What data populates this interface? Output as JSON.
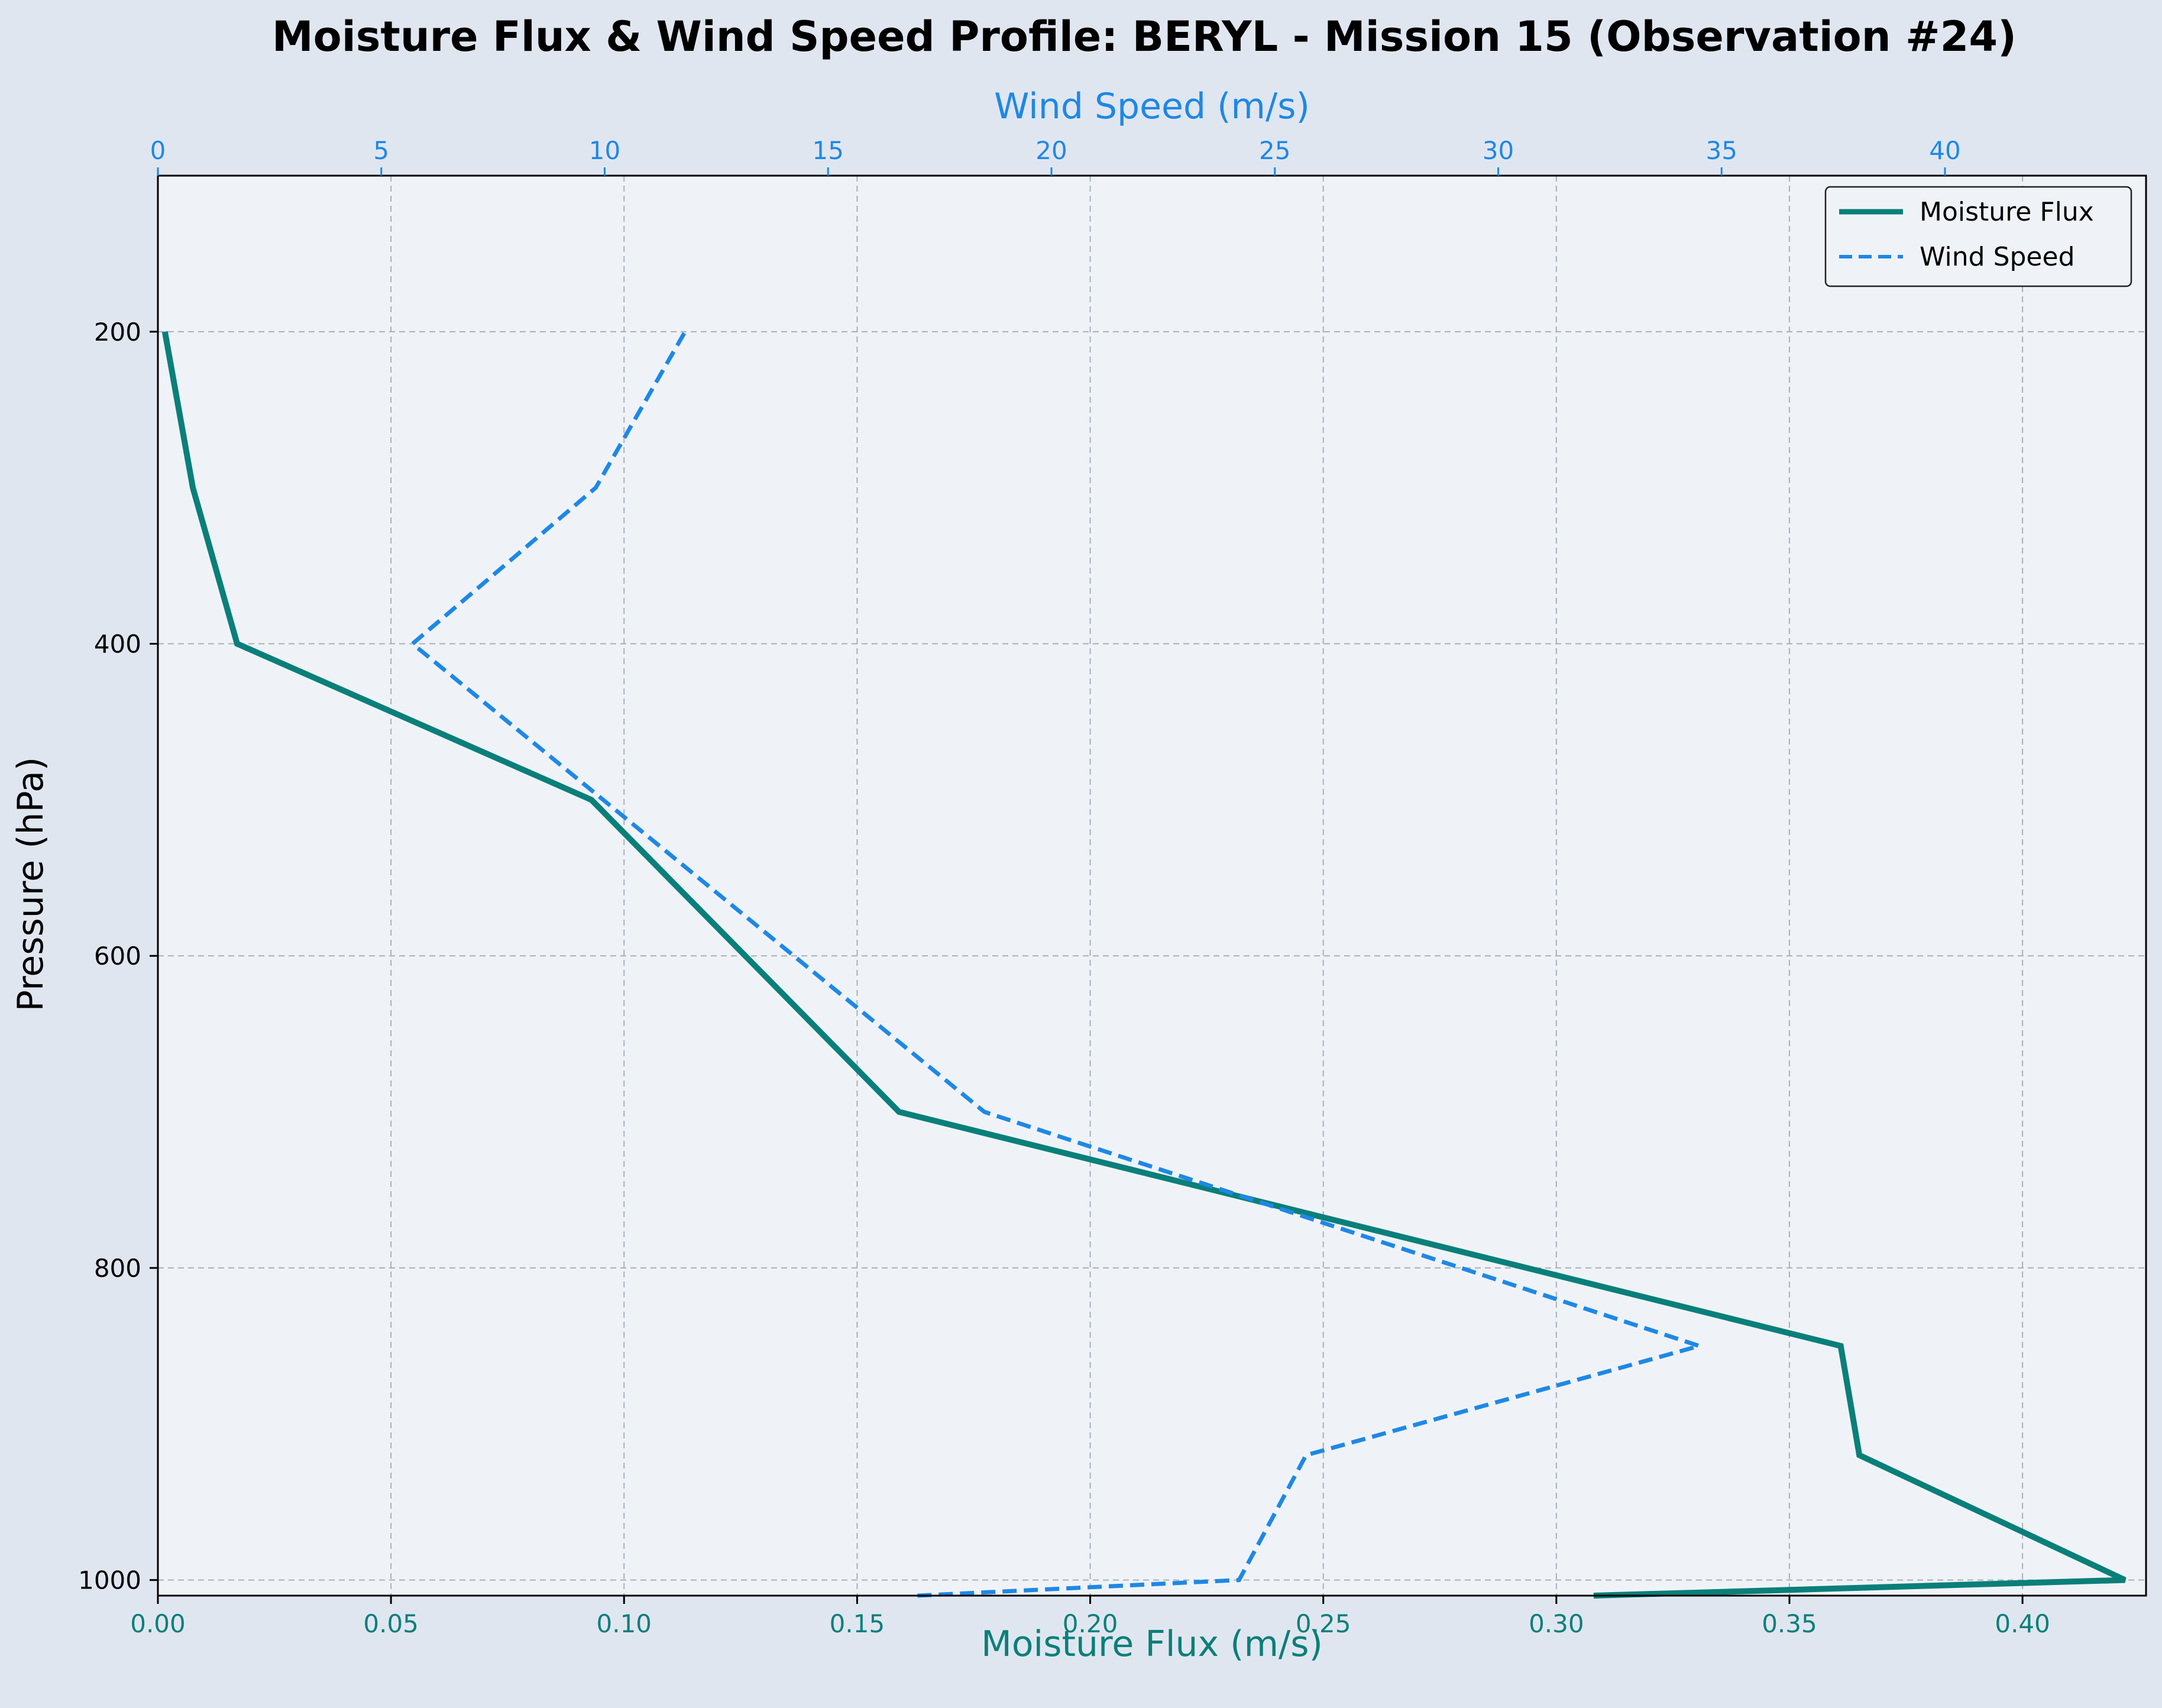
{
  "chart_data": {
    "type": "line",
    "title": "Moisture Flux & Wind Speed Profile: BERYL - Mission 15 (Observation #24)",
    "xlabel_bottom": "Moisture Flux (m/s)",
    "xlabel_top": "Wind Speed (m/s)",
    "ylabel": "Pressure (hPa)",
    "xlim_bottom": [
      0.0,
      0.4265
    ],
    "xlim_top": [
      0.0,
      44.5
    ],
    "ylim": [
      1010,
      100
    ],
    "y_inverted": true,
    "grid": true,
    "legend_position": "top-right",
    "ticks_bottom": [
      "0.00",
      "0.05",
      "0.10",
      "0.15",
      "0.20",
      "0.25",
      "0.30",
      "0.35",
      "0.40"
    ],
    "ticks_top": [
      "0",
      "5",
      "10",
      "15",
      "20",
      "25",
      "30",
      "35",
      "40"
    ],
    "ticks_left": [
      "200",
      "400",
      "600",
      "800",
      "1000"
    ],
    "series": [
      {
        "name": "Moisture Flux",
        "axis": "bottom",
        "color": "#0a7f7a",
        "style": "solid",
        "points": [
          {
            "x": 0.308,
            "y": 1010
          },
          {
            "x": 0.422,
            "y": 1000
          },
          {
            "x": 0.365,
            "y": 920
          },
          {
            "x": 0.361,
            "y": 850
          },
          {
            "x": 0.159,
            "y": 700
          },
          {
            "x": 0.093,
            "y": 500
          },
          {
            "x": 0.017,
            "y": 400
          },
          {
            "x": 0.0075,
            "y": 300
          },
          {
            "x": 0.0015,
            "y": 200
          }
        ]
      },
      {
        "name": "Wind Speed",
        "axis": "top",
        "color": "#1e88e5",
        "style": "dashed",
        "points": [
          {
            "x": 17.0,
            "y": 1010
          },
          {
            "x": 24.2,
            "y": 1000
          },
          {
            "x": 25.7,
            "y": 920
          },
          {
            "x": 34.5,
            "y": 850
          },
          {
            "x": 18.5,
            "y": 700
          },
          {
            "x": 5.7,
            "y": 400
          },
          {
            "x": 9.8,
            "y": 300
          },
          {
            "x": 11.8,
            "y": 200
          }
        ]
      }
    ]
  },
  "colors": {
    "background": "#e0e6f0",
    "plot_background": "#eff3f8",
    "bottom_axis": "#0a7f7a",
    "top_axis": "#1e88e5",
    "grid": "#a9b0b8"
  }
}
